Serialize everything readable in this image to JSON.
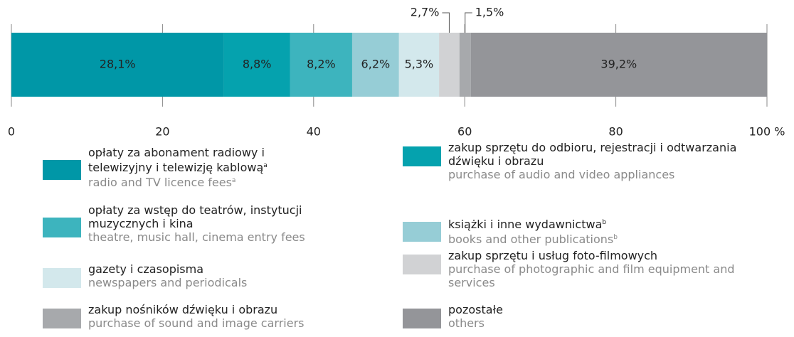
{
  "chart_data": {
    "type": "stacked_bar_horizontal",
    "series": [
      {
        "name": "opłaty  za abonament radiowy i telewizyjny i telewizję kablową",
        "note": "a",
        "name_en": "radio and TV licence fees",
        "note_en": "a",
        "color": "#0097a7",
        "values": [
          28.1
        ],
        "value_labels": [
          "28,1%"
        ]
      },
      {
        "name": "zakup sprzętu do odbioru, rejestracji i odtwarzania dźwięku i obrazu",
        "name_en": "purchase of audio and video appliances",
        "color": "#05a2ae",
        "values": [
          8.8
        ],
        "value_labels": [
          "8,8%"
        ]
      },
      {
        "name": "opłaty za wstęp do teatrów, instytucji muzycznych i kina",
        "name_en": "theatre, music hall, cinema entry fees",
        "color": "#3db4be",
        "values": [
          8.2
        ],
        "value_labels": [
          "8,2%"
        ]
      },
      {
        "name": "książki i inne wydawnictwa",
        "note": "b",
        "name_en": "books and other publications",
        "note_en": "b",
        "color": "#96cdd6",
        "values": [
          6.2
        ],
        "value_labels": [
          "6,2%"
        ]
      },
      {
        "name": "gazety i czasopisma",
        "name_en": "newspapers and periodicals",
        "color": "#d3e8ec",
        "values": [
          5.3
        ],
        "value_labels": [
          "5,3%"
        ]
      },
      {
        "name": "zakup sprzętu i usług foto-filmowych",
        "name_en": "purchase of photographic and film equipment and services",
        "color": "#d1d2d4",
        "values": [
          2.7
        ],
        "value_labels": [
          "2,7%"
        ]
      },
      {
        "name": "zakup nośników dźwięku i obrazu",
        "name_en": "purchase of sound and image carriers",
        "color": "#a7a9ac",
        "values": [
          1.5
        ],
        "value_labels": [
          "1,5%"
        ]
      },
      {
        "name": "pozostałe",
        "name_en": "others",
        "color": "#949599",
        "values": [
          39.2
        ],
        "value_labels": [
          "39,2%"
        ]
      }
    ],
    "xlim": [
      0,
      100
    ],
    "xticks": [
      0,
      20,
      40,
      60,
      80,
      {
        "value": 100,
        "label": "100 %"
      }
    ],
    "grid": true
  }
}
